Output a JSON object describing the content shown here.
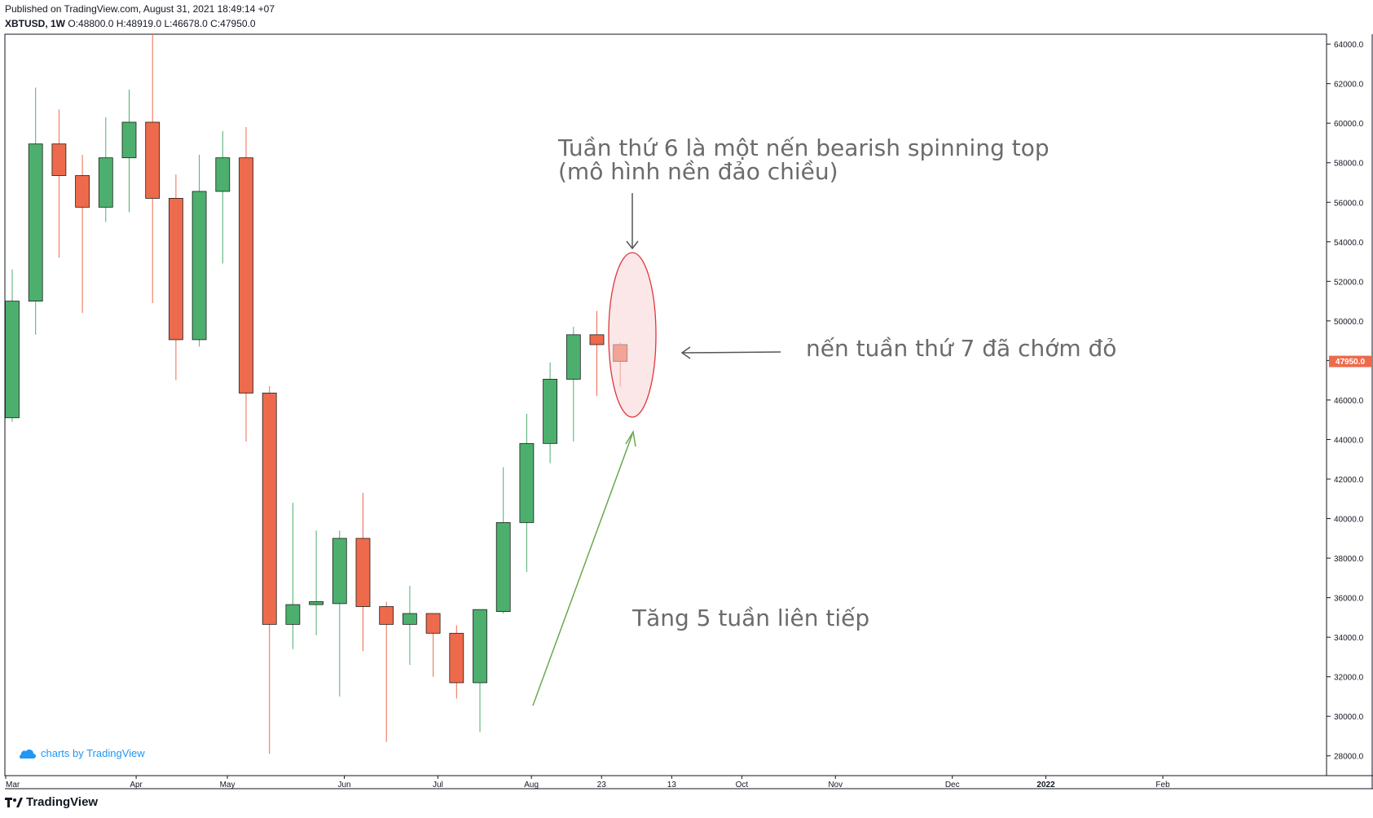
{
  "header": {
    "published": "Published on TradingView.com, August 31, 2021 18:49:14 +07",
    "symbol": "XBTUSD, 1W",
    "ohlc": "O:48800.0 H:48919.0 L:46678.0 C:47950.0"
  },
  "watermark": "charts by TradingView",
  "footer_brand": "TradingView",
  "colors": {
    "up": "#4caf6e",
    "down": "#ee6a4c",
    "annotation_text": "#6b6b6b",
    "ellipse": "#e0353c",
    "green_arrow": "#6aa84f",
    "last_price_bg": "#ee6a4c"
  },
  "chart_data": {
    "type": "candlestick",
    "timeframe": "1W",
    "symbol": "XBTUSD",
    "ylim": [
      27000,
      64500
    ],
    "y_ticks": [
      28000,
      30000,
      32000,
      34000,
      36000,
      38000,
      40000,
      42000,
      44000,
      46000,
      48000,
      50000,
      52000,
      54000,
      56000,
      58000,
      60000,
      62000,
      64000
    ],
    "y_tick_labels": [
      "28000.0",
      "30000.0",
      "32000.0",
      "34000.0",
      "36000.0",
      "38000.0",
      "40000.0",
      "42000.0",
      "44000.0",
      "46000.0",
      "48000.0",
      "50000.0",
      "52000.0",
      "54000.0",
      "56000.0",
      "58000.0",
      "60000.0",
      "62000.0",
      "64000.0"
    ],
    "x_labels": [
      {
        "label": "Mar",
        "week": 0
      },
      {
        "label": "Apr",
        "week": 5.3
      },
      {
        "label": "May",
        "week": 9.2
      },
      {
        "label": "Jun",
        "week": 14.2
      },
      {
        "label": "Jul",
        "week": 18.2
      },
      {
        "label": "Aug",
        "week": 22.2
      },
      {
        "label": "23",
        "week": 25.2
      },
      {
        "label": "13",
        "week": 28.2
      },
      {
        "label": "Oct",
        "week": 31.2
      },
      {
        "label": "Nov",
        "week": 35.2
      },
      {
        "label": "Dec",
        "week": 40.2
      },
      {
        "label": "2022",
        "week": 44.2
      },
      {
        "label": "Feb",
        "week": 49.2
      }
    ],
    "candles": [
      {
        "o": 45100,
        "h": 52600,
        "l": 44900,
        "c": 51000
      },
      {
        "o": 51000,
        "h": 61800,
        "l": 49300,
        "c": 58950
      },
      {
        "o": 58950,
        "h": 60700,
        "l": 53200,
        "c": 57350
      },
      {
        "o": 57350,
        "h": 58400,
        "l": 50400,
        "c": 55750
      },
      {
        "o": 55750,
        "h": 60300,
        "l": 55000,
        "c": 58250
      },
      {
        "o": 58250,
        "h": 61700,
        "l": 55500,
        "c": 60050
      },
      {
        "o": 60050,
        "h": 64900,
        "l": 50900,
        "c": 56200
      },
      {
        "o": 56200,
        "h": 57400,
        "l": 47000,
        "c": 49050
      },
      {
        "o": 49050,
        "h": 58400,
        "l": 48700,
        "c": 56550
      },
      {
        "o": 56550,
        "h": 59600,
        "l": 52900,
        "c": 58250
      },
      {
        "o": 58250,
        "h": 59800,
        "l": 43900,
        "c": 46350
      },
      {
        "o": 46350,
        "h": 46700,
        "l": 28100,
        "c": 34650
      },
      {
        "o": 34650,
        "h": 40800,
        "l": 33400,
        "c": 35650
      },
      {
        "o": 35650,
        "h": 39400,
        "l": 34100,
        "c": 35800
      },
      {
        "o": 35700,
        "h": 39400,
        "l": 31000,
        "c": 39000
      },
      {
        "o": 39000,
        "h": 41300,
        "l": 33300,
        "c": 35550
      },
      {
        "o": 35550,
        "h": 35800,
        "l": 28700,
        "c": 34650
      },
      {
        "o": 34650,
        "h": 36600,
        "l": 32600,
        "c": 35200
      },
      {
        "o": 35200,
        "h": 35200,
        "l": 32000,
        "c": 34200
      },
      {
        "o": 34200,
        "h": 34600,
        "l": 30900,
        "c": 31700
      },
      {
        "o": 31700,
        "h": 35400,
        "l": 29200,
        "c": 35400
      },
      {
        "o": 35300,
        "h": 42600,
        "l": 35200,
        "c": 39800
      },
      {
        "o": 39800,
        "h": 45300,
        "l": 37300,
        "c": 43800
      },
      {
        "o": 43800,
        "h": 47900,
        "l": 42800,
        "c": 47050
      },
      {
        "o": 47050,
        "h": 49700,
        "l": 43900,
        "c": 49300
      },
      {
        "o": 49300,
        "h": 50500,
        "l": 46200,
        "c": 48800
      },
      {
        "o": 48800,
        "h": 48919,
        "l": 46678,
        "c": 47950
      }
    ],
    "last_price_label": "47950.0",
    "last_price": 47950,
    "annotations": {
      "spinning_top_line1": "Tuần thứ 6 là một nến bearish spinning top",
      "spinning_top_line2": "(mô hình nền đảo chiều)",
      "week7": "nến tuần thứ 7 đã chớm đỏ",
      "five_weeks": "Tăng 5 tuần liên tiếp"
    }
  }
}
